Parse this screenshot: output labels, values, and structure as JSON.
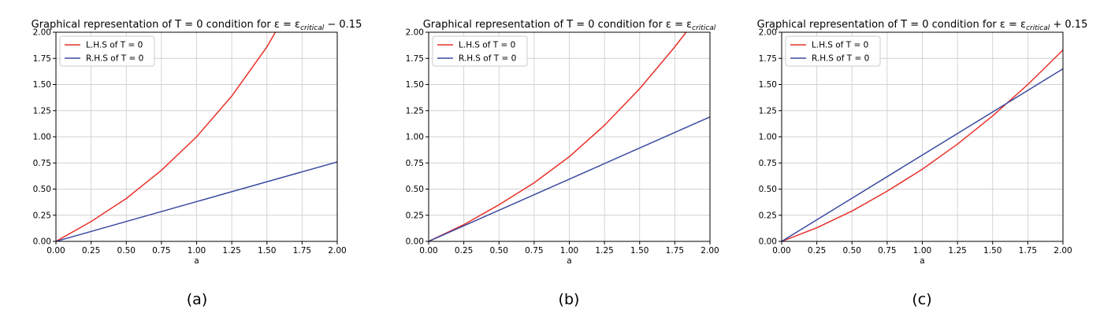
{
  "chart_data": [
    {
      "type": "line",
      "title": "Graphical representation of T = 0 condition for ε = ε",
      "title_sub": "critical",
      "title_suffix": " − 0.15",
      "panel_label": "(a)",
      "xlabel": "a",
      "ylabel": "",
      "xlim": [
        0,
        2
      ],
      "ylim": [
        0,
        2
      ],
      "xticks": [
        "0.00",
        "0.25",
        "0.50",
        "0.75",
        "1.00",
        "1.25",
        "1.50",
        "1.75",
        "2.00"
      ],
      "yticks": [
        "0.00",
        "0.25",
        "0.50",
        "0.75",
        "1.00",
        "1.25",
        "1.50",
        "1.75",
        "2.00"
      ],
      "grid": true,
      "legend_position": "top-left",
      "series": [
        {
          "name": "L.H.S of T = 0",
          "color": "#e8312a",
          "x": [
            0,
            0.25,
            0.5,
            0.75,
            1.0,
            1.25,
            1.5,
            1.56
          ],
          "y": [
            0,
            0.19,
            0.41,
            0.68,
            1.0,
            1.39,
            1.86,
            2.0
          ]
        },
        {
          "name": "R.H.S of T = 0",
          "color": "#3b4aa0",
          "x": [
            0,
            2.0
          ],
          "y": [
            0,
            0.76
          ]
        }
      ]
    },
    {
      "type": "line",
      "title": "Graphical representation of T = 0 condition for ε = ε",
      "title_sub": "critical",
      "title_suffix": "",
      "panel_label": "(b)",
      "xlabel": "a",
      "ylabel": "",
      "xlim": [
        0,
        2
      ],
      "ylim": [
        0,
        2
      ],
      "xticks": [
        "0.00",
        "0.25",
        "0.50",
        "0.75",
        "1.00",
        "1.25",
        "1.50",
        "1.75",
        "2.00"
      ],
      "yticks": [
        "0.00",
        "0.25",
        "0.50",
        "0.75",
        "1.00",
        "1.25",
        "1.50",
        "1.75",
        "2.00"
      ],
      "grid": true,
      "legend_position": "top-left",
      "series": [
        {
          "name": "L.H.S of T = 0",
          "color": "#e8312a",
          "x": [
            0,
            0.25,
            0.5,
            0.75,
            1.0,
            1.25,
            1.5,
            1.75,
            1.83
          ],
          "y": [
            0,
            0.16,
            0.35,
            0.56,
            0.81,
            1.11,
            1.46,
            1.86,
            2.0
          ]
        },
        {
          "name": "R.H.S of T = 0",
          "color": "#3b4aa0",
          "x": [
            0,
            2.0
          ],
          "y": [
            0,
            1.19
          ]
        }
      ]
    },
    {
      "type": "line",
      "title": "Graphical representation of T = 0 condition for ε = ε",
      "title_sub": "critical",
      "title_suffix": " + 0.15",
      "panel_label": "(c)",
      "xlabel": "a",
      "ylabel": "",
      "xlim": [
        0,
        2
      ],
      "ylim": [
        0,
        2
      ],
      "xticks": [
        "0.00",
        "0.25",
        "0.50",
        "0.75",
        "1.00",
        "1.25",
        "1.50",
        "1.75",
        "2.00"
      ],
      "yticks": [
        "0.00",
        "0.25",
        "0.50",
        "0.75",
        "1.00",
        "1.25",
        "1.50",
        "1.75",
        "2.00"
      ],
      "grid": true,
      "legend_position": "top-left",
      "series": [
        {
          "name": "L.H.S of T = 0",
          "color": "#e8312a",
          "x": [
            0,
            0.25,
            0.5,
            0.75,
            1.0,
            1.25,
            1.5,
            1.75,
            2.0
          ],
          "y": [
            0,
            0.13,
            0.29,
            0.48,
            0.69,
            0.93,
            1.2,
            1.5,
            1.83
          ]
        },
        {
          "name": "R.H.S of T = 0",
          "color": "#3b4aa0",
          "x": [
            0,
            2.0
          ],
          "y": [
            0,
            1.65
          ]
        }
      ]
    }
  ]
}
